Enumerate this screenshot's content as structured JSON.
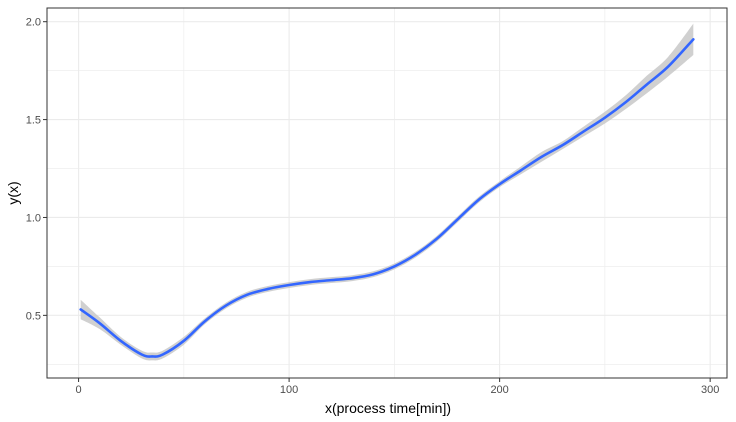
{
  "chart_data": {
    "type": "line",
    "title": "",
    "xlabel": "x(process time[min])",
    "ylabel": "y(x)",
    "xlim": [
      -15,
      308
    ],
    "ylim": [
      0.18,
      2.07
    ],
    "x_ticks": [
      0,
      100,
      200,
      300
    ],
    "x_minor_ticks": [
      50,
      150,
      250
    ],
    "y_ticks": [
      0.5,
      1.0,
      1.5,
      2.0
    ],
    "y_tick_labels": [
      "0.5",
      "1.0",
      "1.5",
      "2.0"
    ],
    "y_minor_ticks": [
      0.25,
      0.75,
      1.25,
      1.75
    ],
    "grid": true,
    "legend": "none",
    "series": [
      {
        "x": [
          1,
          10,
          20,
          30,
          35,
          40,
          50,
          60,
          70,
          80,
          90,
          100,
          110,
          120,
          130,
          140,
          150,
          160,
          170,
          180,
          190,
          200,
          210,
          220,
          230,
          240,
          250,
          260,
          270,
          280,
          292
        ],
        "y": [
          0.53,
          0.46,
          0.37,
          0.3,
          0.29,
          0.3,
          0.37,
          0.47,
          0.55,
          0.605,
          0.635,
          0.655,
          0.67,
          0.68,
          0.69,
          0.71,
          0.75,
          0.81,
          0.89,
          0.99,
          1.09,
          1.17,
          1.24,
          1.31,
          1.37,
          1.44,
          1.51,
          1.59,
          1.68,
          1.77,
          1.91
        ],
        "band_lower": [
          0.48,
          0.43,
          0.35,
          0.28,
          0.27,
          0.28,
          0.35,
          0.455,
          0.535,
          0.59,
          0.62,
          0.64,
          0.655,
          0.665,
          0.675,
          0.695,
          0.735,
          0.795,
          0.875,
          0.975,
          1.075,
          1.155,
          1.22,
          1.285,
          1.35,
          1.415,
          1.48,
          1.555,
          1.635,
          1.72,
          1.83
        ],
        "band_upper": [
          0.58,
          0.49,
          0.39,
          0.32,
          0.31,
          0.32,
          0.39,
          0.485,
          0.565,
          0.62,
          0.65,
          0.67,
          0.685,
          0.695,
          0.705,
          0.725,
          0.765,
          0.825,
          0.905,
          1.005,
          1.105,
          1.185,
          1.26,
          1.335,
          1.39,
          1.465,
          1.54,
          1.625,
          1.725,
          1.82,
          1.99
        ]
      }
    ],
    "colors": {
      "line": "#3366FF",
      "band": "#C8C8C8",
      "grid": "#EBEBEB",
      "panel_border": "#333333",
      "background": "#FFFFFF"
    }
  }
}
